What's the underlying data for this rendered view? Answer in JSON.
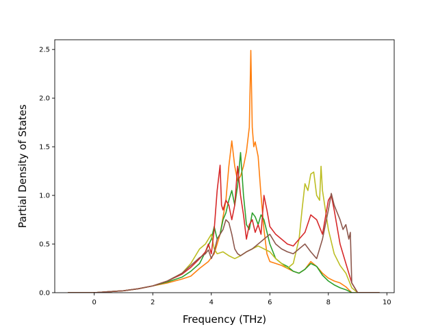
{
  "chart_data": {
    "type": "line",
    "title": "",
    "xlabel": "Frequency (THz)",
    "ylabel": "Partial Density of States",
    "xlim": [
      -1.35,
      10.25
    ],
    "ylim": [
      0.0,
      2.6
    ],
    "xticks": [
      0,
      2,
      4,
      6,
      8,
      10
    ],
    "xtick_labels": [
      "0",
      "2",
      "4",
      "6",
      "8",
      "10"
    ],
    "yticks": [
      0.0,
      0.5,
      1.0,
      1.5,
      2.0,
      2.5
    ],
    "ytick_labels": [
      "0.0",
      "0.5",
      "1.0",
      "1.5",
      "2.0",
      "2.5"
    ],
    "grid": false,
    "series": [
      {
        "color": "#ff7f0e",
        "x": [
          -0.9,
          0.0,
          0.5,
          1.0,
          1.5,
          2.0,
          2.5,
          3.0,
          3.3,
          3.6,
          3.9,
          4.1,
          4.3,
          4.5,
          4.6,
          4.7,
          4.8,
          4.9,
          5.0,
          5.1,
          5.2,
          5.3,
          5.35,
          5.4,
          5.45,
          5.5,
          5.6,
          5.7,
          5.8,
          5.9,
          6.0,
          6.2,
          6.4,
          6.6,
          6.8,
          7.0,
          7.2,
          7.4,
          7.6,
          7.8,
          8.0,
          8.2,
          8.4,
          8.6,
          8.8,
          9.0,
          9.75
        ],
        "y": [
          0.0,
          0.0,
          0.01,
          0.02,
          0.04,
          0.07,
          0.1,
          0.14,
          0.17,
          0.25,
          0.32,
          0.4,
          0.6,
          0.95,
          1.3,
          1.56,
          1.3,
          1.15,
          1.2,
          1.3,
          1.45,
          1.7,
          2.49,
          1.7,
          1.5,
          1.55,
          1.4,
          1.0,
          0.65,
          0.4,
          0.32,
          0.3,
          0.28,
          0.25,
          0.22,
          0.2,
          0.24,
          0.32,
          0.27,
          0.2,
          0.15,
          0.12,
          0.1,
          0.06,
          0.0,
          0.0,
          0.0
        ]
      },
      {
        "color": "#2ca02c",
        "x": [
          -0.9,
          0.0,
          0.5,
          1.0,
          1.5,
          2.0,
          2.5,
          3.0,
          3.3,
          3.6,
          3.8,
          4.0,
          4.1,
          4.2,
          4.3,
          4.4,
          4.5,
          4.6,
          4.7,
          4.8,
          4.9,
          5.0,
          5.1,
          5.2,
          5.3,
          5.4,
          5.5,
          5.6,
          5.7,
          5.8,
          6.0,
          6.2,
          6.4,
          6.6,
          6.8,
          7.0,
          7.2,
          7.4,
          7.6,
          7.8,
          8.0,
          8.2,
          8.4,
          8.6,
          8.8,
          9.0,
          9.75
        ],
        "y": [
          0.0,
          0.0,
          0.01,
          0.02,
          0.04,
          0.07,
          0.11,
          0.16,
          0.22,
          0.3,
          0.42,
          0.55,
          0.68,
          0.55,
          0.6,
          0.75,
          0.82,
          0.95,
          1.05,
          0.9,
          1.1,
          1.44,
          1.0,
          0.7,
          0.65,
          0.82,
          0.78,
          0.7,
          0.8,
          0.75,
          0.5,
          0.35,
          0.3,
          0.27,
          0.22,
          0.2,
          0.24,
          0.3,
          0.27,
          0.18,
          0.12,
          0.08,
          0.05,
          0.03,
          0.0,
          0.0,
          0.0
        ]
      },
      {
        "color": "#bcbd22",
        "x": [
          -0.9,
          0.0,
          0.5,
          1.0,
          1.5,
          2.0,
          2.5,
          3.0,
          3.3,
          3.6,
          3.8,
          3.9,
          4.0,
          4.1,
          4.2,
          4.4,
          4.6,
          4.8,
          5.0,
          5.2,
          5.4,
          5.6,
          5.8,
          6.0,
          6.2,
          6.4,
          6.6,
          6.8,
          7.0,
          7.1,
          7.2,
          7.3,
          7.4,
          7.5,
          7.6,
          7.7,
          7.75,
          7.8,
          7.9,
          8.0,
          8.2,
          8.4,
          8.6,
          8.8,
          9.0,
          9.75
        ],
        "y": [
          0.0,
          0.0,
          0.01,
          0.02,
          0.04,
          0.07,
          0.12,
          0.2,
          0.3,
          0.45,
          0.5,
          0.55,
          0.6,
          0.45,
          0.4,
          0.42,
          0.38,
          0.35,
          0.38,
          0.42,
          0.45,
          0.48,
          0.45,
          0.42,
          0.35,
          0.3,
          0.25,
          0.3,
          0.55,
          0.85,
          1.12,
          1.05,
          1.22,
          1.24,
          1.0,
          0.95,
          1.3,
          1.05,
          0.85,
          0.65,
          0.4,
          0.28,
          0.2,
          0.05,
          0.0,
          0.0
        ]
      },
      {
        "color": "#d62728",
        "x": [
          -0.9,
          0.0,
          0.5,
          1.0,
          1.5,
          2.0,
          2.5,
          3.0,
          3.3,
          3.6,
          3.8,
          3.9,
          4.0,
          4.1,
          4.2,
          4.3,
          4.35,
          4.4,
          4.5,
          4.6,
          4.7,
          4.8,
          4.9,
          5.0,
          5.1,
          5.2,
          5.3,
          5.4,
          5.5,
          5.6,
          5.7,
          5.8,
          5.9,
          6.0,
          6.2,
          6.4,
          6.6,
          6.8,
          7.0,
          7.2,
          7.4,
          7.6,
          7.8,
          8.0,
          8.1,
          8.2,
          8.4,
          8.6,
          8.8,
          9.0,
          9.75
        ],
        "y": [
          0.0,
          0.0,
          0.01,
          0.02,
          0.04,
          0.07,
          0.12,
          0.19,
          0.26,
          0.35,
          0.42,
          0.5,
          0.4,
          0.65,
          1.05,
          1.31,
          0.9,
          0.85,
          0.95,
          0.9,
          0.75,
          0.9,
          1.3,
          1.0,
          0.8,
          0.55,
          0.7,
          0.75,
          0.62,
          0.7,
          0.6,
          1.0,
          0.85,
          0.68,
          0.6,
          0.55,
          0.5,
          0.48,
          0.55,
          0.62,
          0.8,
          0.75,
          0.6,
          0.95,
          1.0,
          0.85,
          0.5,
          0.3,
          0.1,
          0.0,
          0.0
        ]
      },
      {
        "color": "#8c564b",
        "x": [
          -0.9,
          0.0,
          0.5,
          1.0,
          1.5,
          2.0,
          2.5,
          3.0,
          3.3,
          3.6,
          3.8,
          3.9,
          4.0,
          4.1,
          4.2,
          4.3,
          4.4,
          4.5,
          4.6,
          4.7,
          4.8,
          4.9,
          5.0,
          5.2,
          5.4,
          5.6,
          5.8,
          6.0,
          6.2,
          6.4,
          6.6,
          6.8,
          7.0,
          7.2,
          7.4,
          7.6,
          7.8,
          8.0,
          8.1,
          8.2,
          8.4,
          8.5,
          8.6,
          8.7,
          8.75,
          8.8,
          9.0,
          9.75
        ],
        "y": [
          0.0,
          0.0,
          0.01,
          0.02,
          0.04,
          0.07,
          0.12,
          0.2,
          0.28,
          0.36,
          0.4,
          0.44,
          0.35,
          0.42,
          0.55,
          0.6,
          0.65,
          0.75,
          0.72,
          0.6,
          0.45,
          0.4,
          0.38,
          0.42,
          0.45,
          0.5,
          0.55,
          0.6,
          0.5,
          0.45,
          0.42,
          0.4,
          0.45,
          0.5,
          0.42,
          0.35,
          0.55,
          0.85,
          1.02,
          0.9,
          0.75,
          0.65,
          0.7,
          0.55,
          0.62,
          0.1,
          0.0,
          0.0
        ]
      }
    ]
  }
}
